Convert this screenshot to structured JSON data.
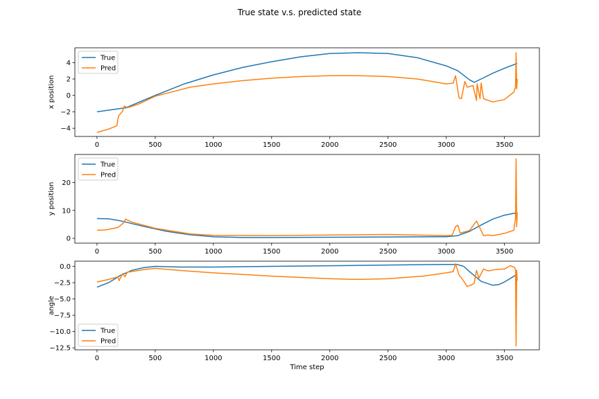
{
  "figure": {
    "title": "True state v.s. predicted state",
    "xlabel": "Time step"
  },
  "colors": {
    "true": "#1f77b4",
    "pred": "#ff7f0e"
  },
  "chart_data": [
    {
      "type": "line",
      "ylabel": "x position",
      "xlim": [
        -190,
        3800
      ],
      "ylim": [
        -5,
        5.8
      ],
      "xticks": [
        0,
        500,
        1000,
        1500,
        2000,
        2500,
        3000,
        3500
      ],
      "xtick_labels": [
        "0",
        "500",
        "1000",
        "1500",
        "2000",
        "2500",
        "3000",
        "3500"
      ],
      "yticks": [
        -4,
        -2,
        0,
        2,
        4
      ],
      "ytick_labels": [
        "−4",
        "−2",
        "0",
        "2",
        "4"
      ],
      "legend": "upper-left",
      "series": [
        {
          "name": "True",
          "color": "#1f77b4",
          "x": [
            0,
            250,
            500,
            750,
            1000,
            1250,
            1500,
            1750,
            2000,
            2250,
            2500,
            2750,
            3000,
            3100,
            3200,
            3240,
            3300,
            3400,
            3500,
            3610
          ],
          "y": [
            -2.0,
            -1.5,
            0.0,
            1.4,
            2.5,
            3.4,
            4.1,
            4.7,
            5.1,
            5.2,
            5.1,
            4.6,
            3.6,
            3.0,
            1.9,
            1.6,
            2.0,
            2.7,
            3.3,
            3.9
          ]
        },
        {
          "name": "Pred",
          "color": "#ff7f0e",
          "x": [
            0,
            100,
            170,
            185,
            220,
            235,
            260,
            350,
            500,
            800,
            1000,
            1250,
            1500,
            1750,
            2000,
            2250,
            2500,
            2750,
            3000,
            3060,
            3080,
            3110,
            3130,
            3160,
            3180,
            3230,
            3260,
            3265,
            3290,
            3300,
            3320,
            3400,
            3500,
            3580,
            3595,
            3600,
            3605,
            3610
          ],
          "y": [
            -4.5,
            -4.1,
            -3.7,
            -2.5,
            -1.9,
            -1.3,
            -1.5,
            -1.1,
            -0.1,
            1.0,
            1.4,
            1.8,
            2.1,
            2.3,
            2.4,
            2.4,
            2.3,
            2.0,
            1.4,
            1.5,
            2.4,
            -0.3,
            -0.4,
            1.7,
            1.0,
            1.2,
            -0.6,
            1.4,
            -0.4,
            1.5,
            -0.4,
            -0.8,
            -0.5,
            0.4,
            1.0,
            5.2,
            0.8,
            2.0
          ]
        }
      ]
    },
    {
      "type": "line",
      "ylabel": "y position",
      "xlim": [
        -190,
        3800
      ],
      "ylim": [
        -1.7,
        30.0
      ],
      "xticks": [
        0,
        500,
        1000,
        1500,
        2000,
        2500,
        3000,
        3500
      ],
      "xtick_labels": [
        "0",
        "500",
        "1000",
        "1500",
        "2000",
        "2500",
        "3000",
        "3500"
      ],
      "yticks": [
        0,
        10,
        20
      ],
      "ytick_labels": [
        "0",
        "10",
        "20"
      ],
      "legend": "upper-left",
      "series": [
        {
          "name": "True",
          "color": "#1f77b4",
          "x": [
            0,
            100,
            200,
            400,
            600,
            800,
            1000,
            1250,
            1500,
            2000,
            2500,
            3000,
            3100,
            3200,
            3300,
            3400,
            3500,
            3610
          ],
          "y": [
            7.1,
            7.0,
            6.3,
            4.3,
            2.5,
            1.3,
            0.6,
            0.3,
            0.3,
            0.4,
            0.5,
            0.6,
            1.0,
            2.5,
            4.8,
            6.9,
            8.3,
            9.2
          ]
        },
        {
          "name": "Pred",
          "color": "#ff7f0e",
          "x": [
            0,
            70,
            180,
            230,
            245,
            300,
            500,
            800,
            1000,
            1500,
            2000,
            2500,
            3000,
            3050,
            3080,
            3100,
            3120,
            3200,
            3260,
            3290,
            3320,
            3360,
            3400,
            3500,
            3580,
            3595,
            3600,
            3605,
            3610
          ],
          "y": [
            2.9,
            3.0,
            3.9,
            5.6,
            6.9,
            5.8,
            3.6,
            1.6,
            1.1,
            1.0,
            1.2,
            1.4,
            1.0,
            1.1,
            4.2,
            4.7,
            1.9,
            2.8,
            6.2,
            3.6,
            1.0,
            1.2,
            1.0,
            1.8,
            2.9,
            7.2,
            28.5,
            4.2,
            9.3
          ]
        }
      ]
    },
    {
      "type": "line",
      "ylabel": "angle",
      "xlim": [
        -190,
        3800
      ],
      "ylim": [
        -12.8,
        0.8
      ],
      "xticks": [
        0,
        500,
        1000,
        1500,
        2000,
        2500,
        3000,
        3500
      ],
      "xtick_labels": [
        "0",
        "500",
        "1000",
        "1500",
        "2000",
        "2500",
        "3000",
        "3500"
      ],
      "yticks": [
        0,
        -2.5,
        -5,
        -7.5,
        -10,
        -12.5
      ],
      "ytick_labels": [
        "0.0",
        "−2.5",
        "−5.0",
        "−7.5",
        "−10.0",
        "−12.5"
      ],
      "legend": "lower-left",
      "series": [
        {
          "name": "True",
          "color": "#1f77b4",
          "x": [
            0,
            100,
            200,
            300,
            400,
            500,
            700,
            1000,
            1500,
            2000,
            2500,
            3000,
            3090,
            3150,
            3200,
            3300,
            3400,
            3450,
            3500,
            3610
          ],
          "y": [
            -3.2,
            -2.5,
            -1.4,
            -0.6,
            -0.2,
            0.0,
            -0.1,
            -0.1,
            0.0,
            0.1,
            0.2,
            0.3,
            0.3,
            0.0,
            -0.8,
            -2.3,
            -2.9,
            -2.8,
            -2.4,
            -1.2
          ]
        },
        {
          "name": "Pred",
          "color": "#ff7f0e",
          "x": [
            0,
            100,
            180,
            190,
            220,
            240,
            260,
            400,
            500,
            700,
            1000,
            1500,
            2000,
            2250,
            2500,
            2800,
            3000,
            3060,
            3080,
            3110,
            3140,
            3180,
            3220,
            3240,
            3260,
            3280,
            3320,
            3360,
            3420,
            3500,
            3550,
            3580,
            3595,
            3600,
            3605,
            3610
          ],
          "y": [
            -2.4,
            -2.0,
            -1.6,
            -2.2,
            -1.1,
            -1.6,
            -0.9,
            -0.5,
            -0.3,
            -0.6,
            -1.0,
            -1.5,
            -1.9,
            -2.0,
            -1.9,
            -1.5,
            -1.0,
            -0.8,
            0.4,
            -1.3,
            -2.0,
            -3.1,
            -2.8,
            -2.6,
            -0.6,
            -1.8,
            -0.4,
            -0.7,
            -0.5,
            -0.4,
            0.1,
            -0.1,
            -0.4,
            -12.2,
            -0.6,
            -2.2
          ]
        }
      ]
    }
  ]
}
